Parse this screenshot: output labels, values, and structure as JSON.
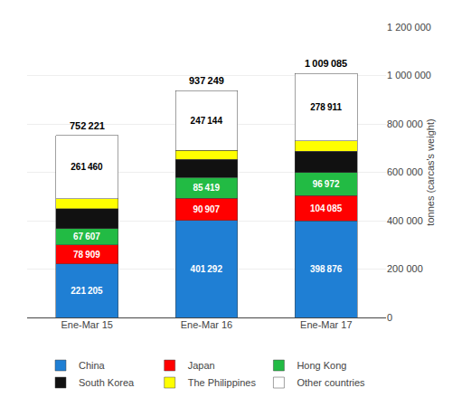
{
  "chart_data": {
    "type": "bar",
    "stacked": true,
    "categories": [
      "Ene-Mar 15",
      "Ene-Mar 16",
      "Ene-Mar 17"
    ],
    "series": [
      {
        "name": "China",
        "color": "#1F7FD4",
        "values": [
          221205,
          401292,
          398876
        ],
        "data_labels": true,
        "value_labels": [
          "221 205",
          "401 292",
          "398 876"
        ]
      },
      {
        "name": "Japan",
        "color": "#FF0000",
        "values": [
          78909,
          90907,
          104085
        ],
        "data_labels": true,
        "value_labels": [
          "78 909",
          "90 907",
          "104 085"
        ]
      },
      {
        "name": "Hong Kong",
        "color": "#22BB44",
        "values": [
          67607,
          85419,
          96972
        ],
        "data_labels": true,
        "value_labels": [
          "67 607",
          "85 419",
          "96 972"
        ]
      },
      {
        "name": "South Korea",
        "color": "#111111",
        "values": [
          82027,
          74991,
          86827
        ],
        "data_labels": false
      },
      {
        "name": "The Philippines",
        "color": "#FFFF00",
        "values": [
          41013,
          37496,
          43414
        ],
        "data_labels": false
      },
      {
        "name": "Other countries",
        "color": "#FFFFFF",
        "values": [
          261460,
          247144,
          278911
        ],
        "data_labels": true,
        "value_labels": [
          "261 460",
          "247 144",
          "278 911"
        ]
      }
    ],
    "totals": [
      752221,
      937249,
      1009085
    ],
    "total_labels": [
      "752 221",
      "937 249",
      "1 009 085"
    ],
    "ylabel": "tonnes (carcas's weight)",
    "ylim": [
      0,
      1200000
    ],
    "yticks": [
      0,
      {
        "value": 200000,
        "label": "200 000"
      },
      {
        "value": 400000,
        "label": "400 000"
      },
      {
        "value": 600000,
        "label": "600 000"
      },
      {
        "value": 800000,
        "label": "800 000"
      },
      {
        "value": 1000000,
        "label": "1 000 000"
      },
      {
        "value": 1200000,
        "label": "1 200 000"
      }
    ],
    "grid": true,
    "legend": "bottom"
  }
}
